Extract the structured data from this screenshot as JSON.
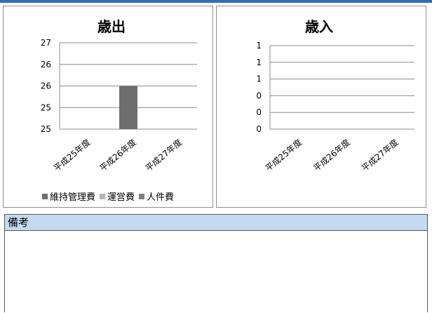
{
  "chart_data": [
    {
      "type": "bar",
      "title": "歳出",
      "categories": [
        "平成25年度",
        "平成26年度",
        "平成27年度"
      ],
      "y_ticks": [
        "27",
        "26",
        "26",
        "25",
        "25"
      ],
      "ylim": [
        25,
        27
      ],
      "grid": true,
      "series": [
        {
          "name": "維持管理費",
          "color": "#6e6e6e",
          "values": [
            25,
            26,
            25
          ]
        },
        {
          "name": "運営費",
          "color": "#b3b3b3",
          "values": [
            0,
            0,
            0
          ]
        },
        {
          "name": "人件費",
          "color": "#7f7f7f",
          "values": [
            0,
            0,
            0
          ]
        }
      ],
      "legend_position": "bottom"
    },
    {
      "type": "bar",
      "title": "歳入",
      "categories": [
        "平成25年度",
        "平成26年度",
        "平成27年度"
      ],
      "y_ticks": [
        "1",
        "1",
        "1",
        "0",
        "0",
        "0"
      ],
      "ylim": [
        0,
        1
      ],
      "grid": true,
      "series": []
    }
  ],
  "remarks": {
    "header": "備考",
    "body": ""
  }
}
